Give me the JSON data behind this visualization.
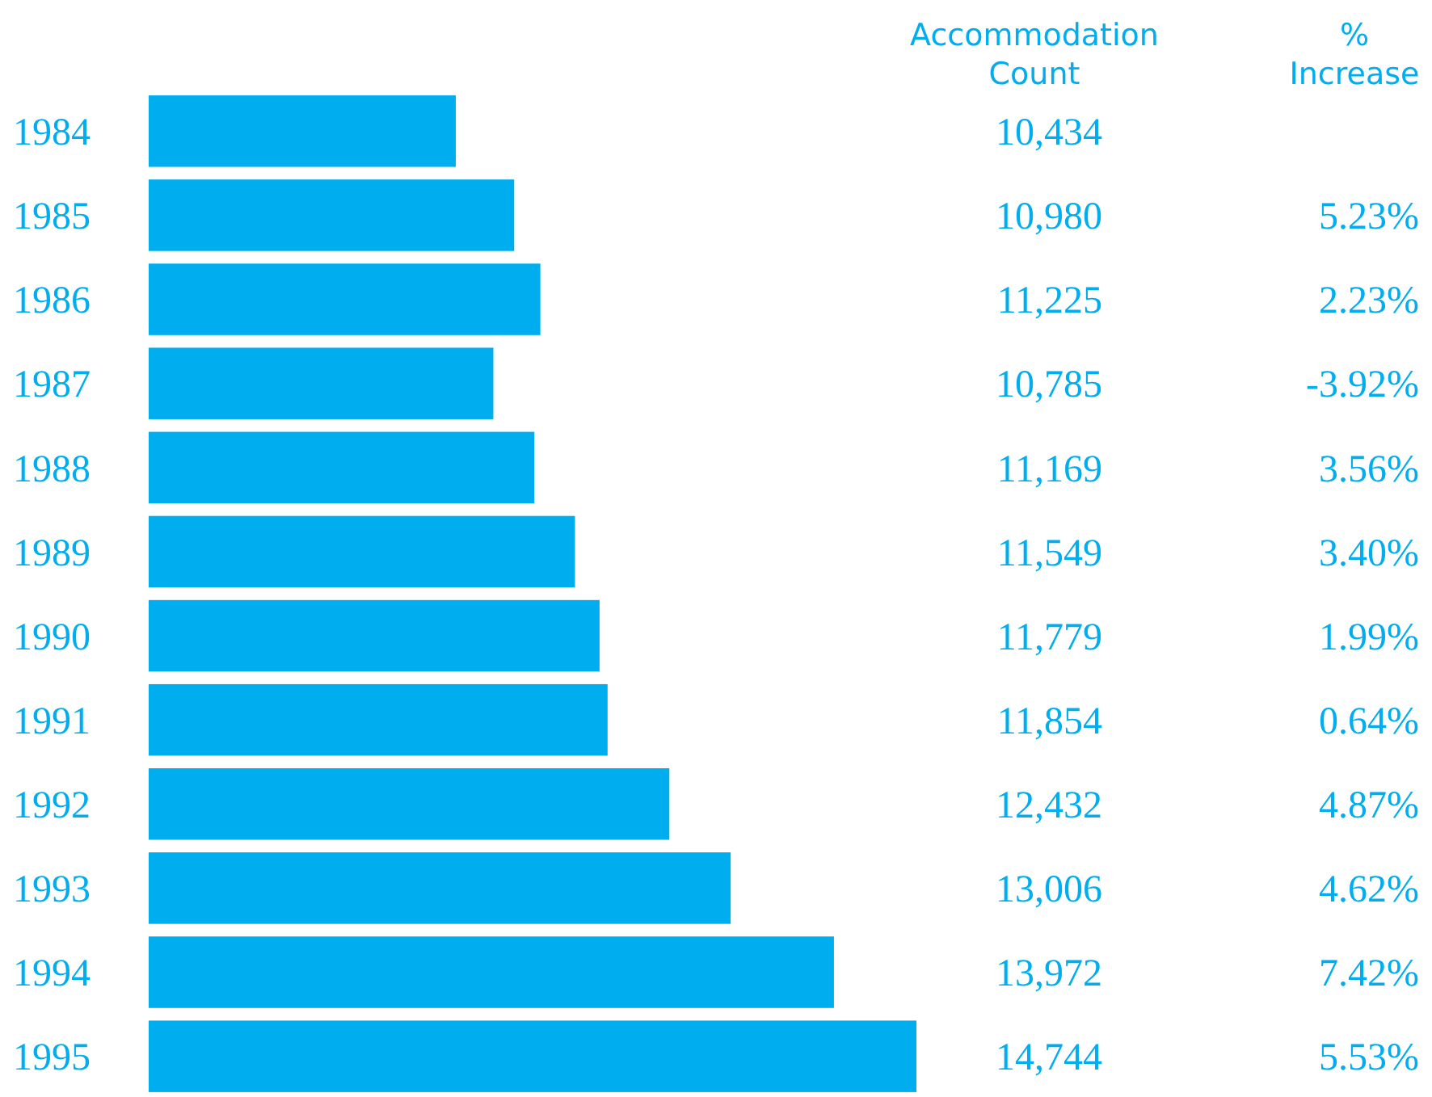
{
  "chart_data": {
    "type": "bar",
    "orientation": "horizontal",
    "xlim": [
      7560,
      14744
    ],
    "xlabel": "Accommodation Count",
    "categories": [
      "1984",
      "1985",
      "1986",
      "1987",
      "1988",
      "1989",
      "1990",
      "1991",
      "1992",
      "1993",
      "1994",
      "1995"
    ],
    "values": [
      10434,
      10980,
      11225,
      10785,
      11169,
      11549,
      11779,
      11854,
      12432,
      13006,
      13972,
      14744
    ],
    "value_labels": [
      "10,434",
      "10,980",
      "11,225",
      "10,785",
      "11,169",
      "11,549",
      "11,779",
      "11,854",
      "12,432",
      "13,006",
      "13,972",
      "14,744"
    ],
    "color": "#00aeef",
    "tick_labels": "y",
    "annotations": [
      "% Increase",
      "5.23%",
      "2.23%",
      "-3.92%",
      "3.56%",
      "3.40%",
      "1.99%",
      "0.64%",
      "4.87%",
      "4.62%",
      "7.42%",
      "5.53%"
    ]
  }
}
